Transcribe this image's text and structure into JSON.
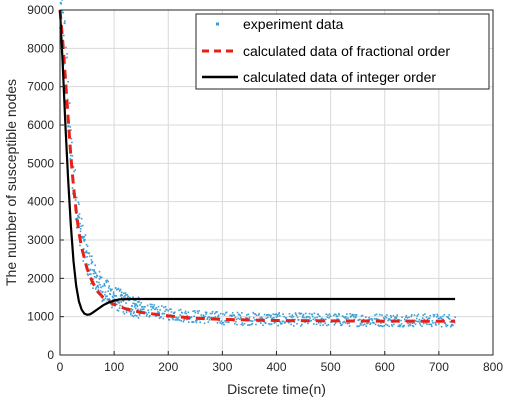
{
  "chart_data": {
    "type": "line",
    "title": "",
    "xlabel": "Discrete time(n)",
    "ylabel": "The number of susceptible nodes",
    "xlim": [
      0,
      800
    ],
    "ylim": [
      0,
      9000
    ],
    "xticks": [
      0,
      100,
      200,
      300,
      400,
      500,
      600,
      700,
      800
    ],
    "yticks": [
      0,
      1000,
      2000,
      3000,
      4000,
      5000,
      6000,
      7000,
      8000,
      9000
    ],
    "grid": true,
    "legend_position": "top-right",
    "series": [
      {
        "name": "experiment data",
        "style": "dots",
        "color": "#3b9fd6",
        "x_range": [
          0,
          730
        ],
        "band_center": [
          [
            0,
            9000
          ],
          [
            10,
            7800
          ],
          [
            20,
            5300
          ],
          [
            30,
            4000
          ],
          [
            40,
            3100
          ],
          [
            50,
            2500
          ],
          [
            60,
            2150
          ],
          [
            70,
            1900
          ],
          [
            80,
            1700
          ],
          [
            100,
            1500
          ],
          [
            120,
            1350
          ],
          [
            150,
            1200
          ],
          [
            200,
            1080
          ],
          [
            250,
            1000
          ],
          [
            300,
            960
          ],
          [
            400,
            930
          ],
          [
            500,
            920
          ],
          [
            600,
            910
          ],
          [
            730,
            900
          ]
        ],
        "spread_early": 350,
        "spread_late": 170
      },
      {
        "name": "calculated data of fractional order",
        "style": "dashed",
        "color": "#e8201a",
        "points": [
          [
            0,
            9000
          ],
          [
            5,
            8200
          ],
          [
            10,
            7200
          ],
          [
            15,
            6200
          ],
          [
            20,
            5200
          ],
          [
            25,
            4400
          ],
          [
            30,
            3750
          ],
          [
            35,
            3200
          ],
          [
            40,
            2800
          ],
          [
            50,
            2250
          ],
          [
            60,
            1900
          ],
          [
            70,
            1650
          ],
          [
            80,
            1500
          ],
          [
            90,
            1400
          ],
          [
            100,
            1320
          ],
          [
            120,
            1210
          ],
          [
            150,
            1110
          ],
          [
            200,
            1020
          ],
          [
            250,
            960
          ],
          [
            300,
            930
          ],
          [
            400,
            900
          ],
          [
            500,
            890
          ],
          [
            600,
            885
          ],
          [
            730,
            880
          ]
        ]
      },
      {
        "name": "calculated data of integer order",
        "style": "solid",
        "color": "#000000",
        "points": [
          [
            0,
            9000
          ],
          [
            5,
            7600
          ],
          [
            10,
            6000
          ],
          [
            15,
            4600
          ],
          [
            20,
            3400
          ],
          [
            25,
            2450
          ],
          [
            30,
            1800
          ],
          [
            35,
            1400
          ],
          [
            40,
            1180
          ],
          [
            45,
            1080
          ],
          [
            50,
            1050
          ],
          [
            55,
            1060
          ],
          [
            60,
            1100
          ],
          [
            70,
            1200
          ],
          [
            80,
            1300
          ],
          [
            90,
            1370
          ],
          [
            100,
            1420
          ],
          [
            110,
            1450
          ],
          [
            130,
            1460
          ],
          [
            200,
            1460
          ],
          [
            400,
            1460
          ],
          [
            600,
            1460
          ],
          [
            730,
            1460
          ]
        ]
      }
    ]
  }
}
